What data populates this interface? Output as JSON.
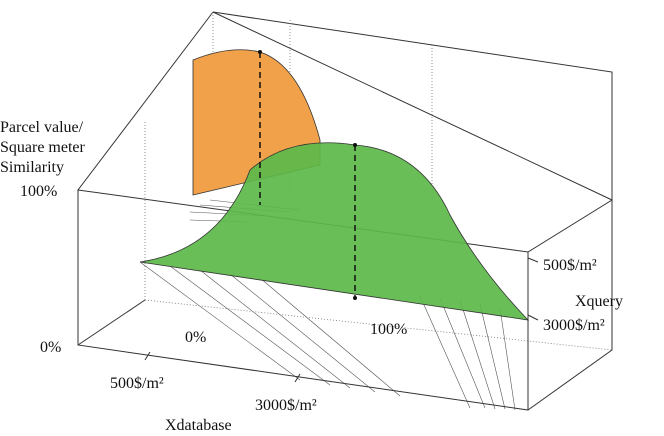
{
  "labels": {
    "y_axis": [
      "Parcel value/",
      "Square meter",
      "Similarity"
    ],
    "y_top": "100%",
    "y_bottom": "0%",
    "x_axis": "Xdatabase",
    "x_ticks": [
      "500$/m²",
      "3000$/m²"
    ],
    "q_axis": "Xquery",
    "q_ticks": [
      "500$/m²",
      "3000$/m²"
    ],
    "sim_ticks": [
      "0%",
      "100%"
    ]
  }
}
